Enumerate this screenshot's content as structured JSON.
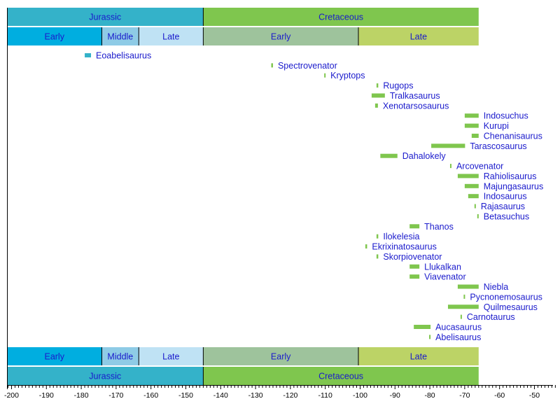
{
  "chart_data": {
    "type": "timeline",
    "xlim": [
      -201.3,
      -45
    ],
    "ticks": [
      -200,
      -190,
      -180,
      -170,
      -160,
      -150,
      -140,
      -130,
      -120,
      -110,
      -100,
      -90,
      -80,
      -70,
      -60,
      -50
    ],
    "periods": [
      {
        "name": "Jurassic",
        "start": -201.3,
        "end": -145,
        "color": "#34b2c9"
      },
      {
        "name": "Cretaceous",
        "start": -145,
        "end": -66,
        "color": "#7fc64e"
      }
    ],
    "epochs": [
      {
        "name": "Early",
        "start": -201.3,
        "end": -174.1,
        "color": "#00aee0"
      },
      {
        "name": "Middle",
        "start": -174.1,
        "end": -163.5,
        "color": "#8ecbe6"
      },
      {
        "name": "Late",
        "start": -163.5,
        "end": -145,
        "color": "#bfe2f4"
      },
      {
        "name": "Early",
        "start": -145,
        "end": -100.5,
        "color": "#9ec39c"
      },
      {
        "name": "Late",
        "start": -100.5,
        "end": -66,
        "color": "#bcd366"
      }
    ],
    "label_color": "#1a1acc",
    "taxa": [
      {
        "name": "Eoabelisaurus",
        "start": -179,
        "end": -177.2,
        "color": "#34b2c9"
      },
      {
        "name": "Spectrovenator",
        "start": -125.5,
        "end": -125,
        "color": "#7fc64e"
      },
      {
        "name": "Kryptops",
        "start": -110.3,
        "end": -110,
        "color": "#7fc64e"
      },
      {
        "name": "Rugops",
        "start": -95.3,
        "end": -94.8,
        "color": "#7fc64e"
      },
      {
        "name": "Tralkasaurus",
        "start": -96.7,
        "end": -92.9,
        "color": "#7fc64e"
      },
      {
        "name": "Xenotarsosaurus",
        "start": -95.7,
        "end": -94.9,
        "color": "#7fc64e"
      },
      {
        "name": "Indosuchus",
        "start": -70,
        "end": -66,
        "color": "#7fc64e"
      },
      {
        "name": "Kurupi",
        "start": -70,
        "end": -66,
        "color": "#7fc64e"
      },
      {
        "name": "Chenanisaurus",
        "start": -68,
        "end": -66,
        "color": "#7fc64e"
      },
      {
        "name": "Tarascosaurus",
        "start": -79.6,
        "end": -69.9,
        "color": "#7fc64e"
      },
      {
        "name": "Dahalokely",
        "start": -94.2,
        "end": -89.3,
        "color": "#7fc64e"
      },
      {
        "name": "Arcovenator",
        "start": -74.2,
        "end": -73.8,
        "color": "#7fc64e"
      },
      {
        "name": "Rahiolisaurus",
        "start": -72,
        "end": -66,
        "color": "#7fc64e"
      },
      {
        "name": "Majungasaurus",
        "start": -70,
        "end": -66,
        "color": "#7fc64e"
      },
      {
        "name": "Indosaurus",
        "start": -69,
        "end": -66,
        "color": "#7fc64e"
      },
      {
        "name": "Rajasaurus",
        "start": -67.2,
        "end": -66.8,
        "color": "#7fc64e"
      },
      {
        "name": "Betasuchus",
        "start": -66.4,
        "end": -66,
        "color": "#7fc64e"
      },
      {
        "name": "Thanos",
        "start": -85.8,
        "end": -83,
        "color": "#7fc64e"
      },
      {
        "name": "Ilokelesia",
        "start": -95.3,
        "end": -94.8,
        "color": "#7fc64e"
      },
      {
        "name": "Ekrixinatosaurus",
        "start": -98.5,
        "end": -98,
        "color": "#7fc64e"
      },
      {
        "name": "Skorpiovenator",
        "start": -95.3,
        "end": -94.8,
        "color": "#7fc64e"
      },
      {
        "name": "Llukalkan",
        "start": -85.8,
        "end": -83,
        "color": "#7fc64e"
      },
      {
        "name": "Viavenator",
        "start": -85.8,
        "end": -83,
        "color": "#7fc64e"
      },
      {
        "name": "Niebla",
        "start": -72,
        "end": -66,
        "color": "#7fc64e"
      },
      {
        "name": "Pycnonemosaurus",
        "start": -70.3,
        "end": -69.9,
        "color": "#7fc64e"
      },
      {
        "name": "Quilmesaurus",
        "start": -74.8,
        "end": -66,
        "color": "#7fc64e"
      },
      {
        "name": "Carnotaurus",
        "start": -71.2,
        "end": -70.8,
        "color": "#7fc64e"
      },
      {
        "name": "Aucasaurus",
        "start": -84.6,
        "end": -79.8,
        "color": "#7fc64e"
      },
      {
        "name": "Abelisaurus",
        "start": -80.2,
        "end": -79.8,
        "color": "#7fc64e"
      }
    ]
  }
}
